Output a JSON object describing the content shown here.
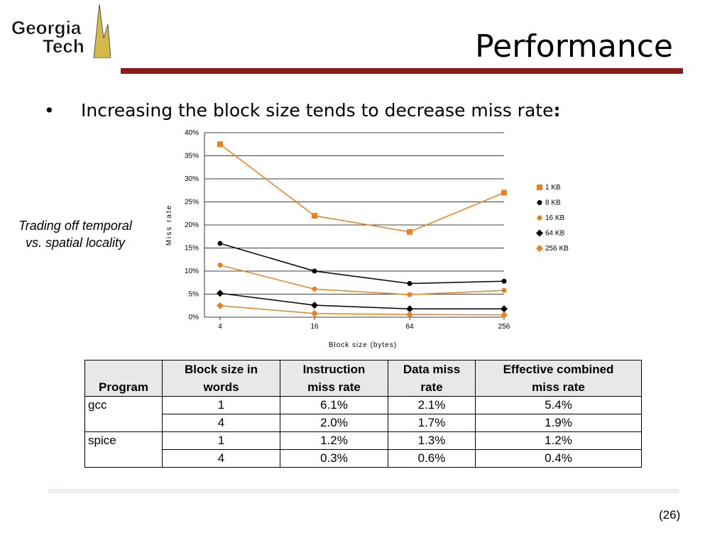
{
  "logo": {
    "line1": "Georgia",
    "line2": "Tech"
  },
  "slide": {
    "title": "Performance",
    "bullet_symbol": "•",
    "bullet_text": "Increasing the block size tends to decrease miss rate",
    "bullet_colon": ":",
    "side_note_line1": "Trading off temporal",
    "side_note_line2": "vs. spatial locality",
    "page_number": "(26)"
  },
  "colors": {
    "orange": "#e8821e",
    "black": "#000000",
    "title_bar": "#8b1a1a"
  },
  "chart_data": {
    "type": "line",
    "x": [
      "4",
      "16",
      "64",
      "256"
    ],
    "xlabel": "Block size (bytes)",
    "ylabel": "Miss rate",
    "ylim": [
      0,
      40
    ],
    "y_ticks": [
      "0%",
      "5%",
      "10%",
      "15%",
      "20%",
      "25%",
      "30%",
      "35%",
      "40%"
    ],
    "grid": "horizontal major lines",
    "legend_position": "right",
    "series": [
      {
        "name": "1 KB",
        "values": [
          37.5,
          22,
          18.5,
          27
        ],
        "color": "#e8821e",
        "marker": "square"
      },
      {
        "name": "8 KB",
        "values": [
          16,
          10,
          7.3,
          7.8
        ],
        "color": "#000000",
        "marker": "circle"
      },
      {
        "name": "16 KB",
        "values": [
          11.3,
          6.1,
          4.9,
          5.8
        ],
        "color": "#e8821e",
        "marker": "circle"
      },
      {
        "name": "64 KB",
        "values": [
          5.2,
          2.6,
          1.8,
          1.8
        ],
        "color": "#000000",
        "marker": "diamond"
      },
      {
        "name": "256 KB",
        "values": [
          2.5,
          0.8,
          0.6,
          0.5
        ],
        "color": "#e8821e",
        "marker": "diamond"
      }
    ]
  },
  "table": {
    "headers": [
      "Program",
      "Block size in words",
      "Instruction miss rate",
      "Data miss rate",
      "Effective combined miss rate"
    ],
    "header_lines": [
      [
        "",
        "Program"
      ],
      [
        "Block size in",
        "words"
      ],
      [
        "Instruction",
        "miss rate"
      ],
      [
        "Data miss",
        "rate"
      ],
      [
        "Effective combined",
        "miss rate"
      ]
    ],
    "rows": [
      {
        "program": "gcc",
        "block": "1",
        "instr": "6.1%",
        "data": "2.1%",
        "combined": "5.4%"
      },
      {
        "program": "",
        "block": "4",
        "instr": "2.0%",
        "data": "1.7%",
        "combined": "1.9%"
      },
      {
        "program": "spice",
        "block": "1",
        "instr": "1.2%",
        "data": "1.3%",
        "combined": "1.2%"
      },
      {
        "program": "",
        "block": "4",
        "instr": "0.3%",
        "data": "0.6%",
        "combined": "0.4%"
      }
    ]
  }
}
